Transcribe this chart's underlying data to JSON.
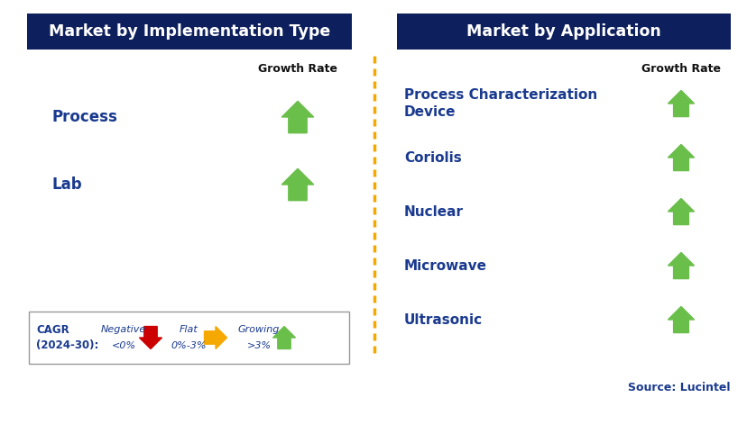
{
  "left_panel_title": "Market by Implementation Type",
  "right_panel_title": "Market by Application",
  "left_items": [
    "Process",
    "Lab"
  ],
  "right_items": [
    "Process Characterization\nDevice",
    "Coriolis",
    "Nuclear",
    "Microwave",
    "Ultrasonic"
  ],
  "header_bg_color": "#0d1f5c",
  "header_text_color": "#ffffff",
  "item_text_color": "#1a3a8f",
  "growth_rate_label": "Growth Rate",
  "growth_rate_color": "#111111",
  "arrow_up_color": "#6abf4b",
  "arrow_down_color": "#cc0000",
  "arrow_flat_color": "#f5a800",
  "divider_color": "#f5a800",
  "legend_cagr": "CAGR\n(2024-30):",
  "legend_neg_label": "Negative",
  "legend_neg_val": "<0%",
  "legend_flat_label": "Flat",
  "legend_flat_val": "0%-3%",
  "legend_grow_label": "Growing",
  "legend_grow_val": ">3%",
  "source_text": "Source: Lucintel",
  "bg_color": "#ffffff",
  "fig_w": 8.29,
  "fig_h": 4.92,
  "dpi": 100
}
